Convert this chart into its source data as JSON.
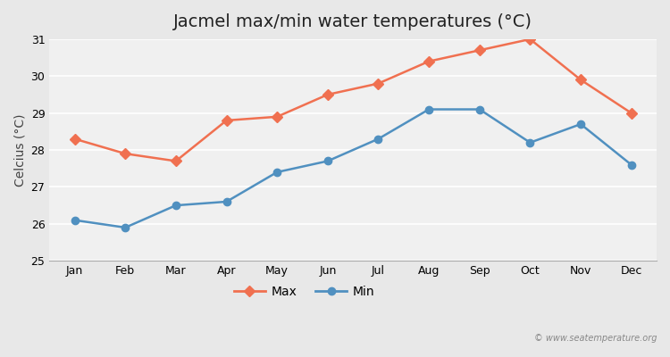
{
  "title": "Jacmel max/min water temperatures (°C)",
  "xlabel": "",
  "ylabel": "Celcius (°C)",
  "months": [
    "Jan",
    "Feb",
    "Mar",
    "Apr",
    "May",
    "Jun",
    "Jul",
    "Aug",
    "Sep",
    "Oct",
    "Nov",
    "Dec"
  ],
  "max_temps": [
    28.3,
    27.9,
    27.7,
    28.8,
    28.9,
    29.5,
    29.8,
    30.4,
    30.7,
    31.0,
    29.9,
    29.0
  ],
  "min_temps": [
    26.1,
    25.9,
    26.5,
    26.6,
    27.4,
    27.7,
    28.3,
    29.1,
    29.1,
    28.2,
    28.7,
    27.6
  ],
  "max_color": "#f07050",
  "min_color": "#5090c0",
  "bg_color": "#e8e8e8",
  "plot_bg_color": "#f0f0f0",
  "ylim": [
    25,
    31
  ],
  "yticks": [
    25,
    26,
    27,
    28,
    29,
    30,
    31
  ],
  "grid_color": "#ffffff",
  "watermark": "© www.seatemperature.org",
  "title_fontsize": 14,
  "label_fontsize": 10,
  "tick_fontsize": 9,
  "legend_fontsize": 10
}
